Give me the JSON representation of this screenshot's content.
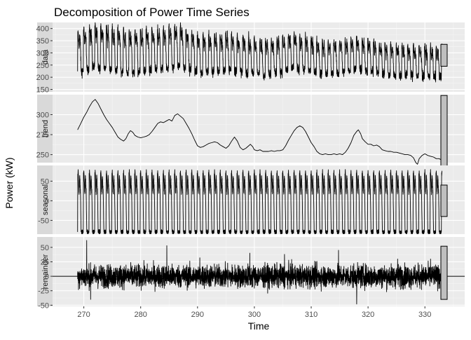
{
  "chart_data": {
    "type": "line",
    "title": "Decomposition of Power Time Series",
    "xlabel": "Time",
    "ylabel": "Power (kW)",
    "xlim": [
      264.5,
      337
    ],
    "x_ticks": [
      270,
      280,
      290,
      300,
      310,
      320,
      330
    ],
    "x_range": [
      268.9,
      333.0
    ],
    "grid": true,
    "panels": [
      {
        "name": "data",
        "ylim": [
          140,
          425
        ],
        "y_ticks": [
          150,
          200,
          250,
          300,
          350,
          400
        ],
        "level": [
          [
            268.9,
            300
          ],
          [
            270,
            315
          ],
          [
            272,
            330
          ],
          [
            275,
            320
          ],
          [
            278,
            305
          ],
          [
            282,
            312
          ],
          [
            285,
            325
          ],
          [
            287,
            330
          ],
          [
            290,
            300
          ],
          [
            293,
            300
          ],
          [
            296,
            305
          ],
          [
            299,
            290
          ],
          [
            302,
            285
          ],
          [
            305,
            295
          ],
          [
            307,
            310
          ],
          [
            309,
            300
          ],
          [
            312,
            280
          ],
          [
            315,
            285
          ],
          [
            318,
            300
          ],
          [
            320,
            290
          ],
          [
            323,
            275
          ],
          [
            326,
            270
          ],
          [
            328,
            268
          ],
          [
            330,
            265
          ],
          [
            333.0,
            260
          ]
        ],
        "amplitude": [
          [
            268.9,
            95
          ],
          [
            275,
            98
          ],
          [
            285,
            95
          ],
          [
            295,
            85
          ],
          [
            305,
            80
          ],
          [
            315,
            75
          ],
          [
            325,
            70
          ],
          [
            333.0,
            68
          ]
        ],
        "noise": 14,
        "scale_bar": [
          245,
          335
        ]
      },
      {
        "name": "trend",
        "ylim": [
          240,
          325
        ],
        "y_ticks": [
          250,
          275,
          300
        ],
        "points": [
          [
            268.9,
            281
          ],
          [
            269.4,
            288
          ],
          [
            270.0,
            297
          ],
          [
            270.5,
            303
          ],
          [
            271.0,
            310
          ],
          [
            271.5,
            316
          ],
          [
            272.0,
            319
          ],
          [
            272.5,
            314
          ],
          [
            273.0,
            307
          ],
          [
            273.5,
            300
          ],
          [
            274.0,
            294
          ],
          [
            274.5,
            289
          ],
          [
            275.0,
            284
          ],
          [
            275.5,
            278
          ],
          [
            276.0,
            272
          ],
          [
            276.5,
            269
          ],
          [
            277.0,
            267
          ],
          [
            277.4,
            270
          ],
          [
            277.8,
            276
          ],
          [
            278.2,
            280
          ],
          [
            278.6,
            278
          ],
          [
            279.0,
            274
          ],
          [
            279.5,
            272
          ],
          [
            280.0,
            271
          ],
          [
            280.5,
            272
          ],
          [
            281.0,
            273
          ],
          [
            281.5,
            275
          ],
          [
            282.0,
            279
          ],
          [
            282.5,
            284
          ],
          [
            283.0,
            289
          ],
          [
            283.5,
            291
          ],
          [
            284.0,
            290
          ],
          [
            284.5,
            292
          ],
          [
            285.0,
            294
          ],
          [
            285.5,
            292
          ],
          [
            286.0,
            299
          ],
          [
            286.5,
            301
          ],
          [
            287.0,
            298
          ],
          [
            287.5,
            295
          ],
          [
            288.0,
            289
          ],
          [
            288.5,
            283
          ],
          [
            289.0,
            276
          ],
          [
            289.5,
            268
          ],
          [
            290.0,
            261
          ],
          [
            290.5,
            259
          ],
          [
            291.0,
            260
          ],
          [
            291.5,
            262
          ],
          [
            292.0,
            264
          ],
          [
            292.5,
            265
          ],
          [
            293.0,
            266
          ],
          [
            293.5,
            265
          ],
          [
            294.0,
            262
          ],
          [
            294.5,
            260
          ],
          [
            295.0,
            258
          ],
          [
            295.5,
            261
          ],
          [
            296.0,
            267
          ],
          [
            296.5,
            272
          ],
          [
            297.0,
            267
          ],
          [
            297.5,
            259
          ],
          [
            298.0,
            256
          ],
          [
            298.5,
            258
          ],
          [
            299.0,
            261
          ],
          [
            299.3,
            263
          ],
          [
            299.7,
            260
          ],
          [
            300.0,
            256
          ],
          [
            300.5,
            255
          ],
          [
            301.0,
            256
          ],
          [
            301.5,
            254
          ],
          [
            302.0,
            254
          ],
          [
            302.5,
            254
          ],
          [
            303.0,
            255
          ],
          [
            303.5,
            254
          ],
          [
            304.0,
            255
          ],
          [
            304.5,
            255
          ],
          [
            305.0,
            256
          ],
          [
            305.5,
            261
          ],
          [
            306.0,
            268
          ],
          [
            306.5,
            274
          ],
          [
            307.0,
            280
          ],
          [
            307.5,
            284
          ],
          [
            308.0,
            286
          ],
          [
            308.5,
            284
          ],
          [
            309.0,
            279
          ],
          [
            309.5,
            272
          ],
          [
            310.0,
            265
          ],
          [
            310.5,
            260
          ],
          [
            311.0,
            254
          ],
          [
            311.5,
            251
          ],
          [
            312.0,
            250
          ],
          [
            312.5,
            251
          ],
          [
            313.0,
            250
          ],
          [
            313.5,
            250
          ],
          [
            314.0,
            251
          ],
          [
            314.5,
            250
          ],
          [
            315.0,
            251
          ],
          [
            315.5,
            250
          ],
          [
            316.0,
            253
          ],
          [
            316.5,
            258
          ],
          [
            317.0,
            265
          ],
          [
            317.5,
            274
          ],
          [
            318.0,
            279
          ],
          [
            318.3,
            281
          ],
          [
            318.7,
            276
          ],
          [
            319.0,
            270
          ],
          [
            319.5,
            266
          ],
          [
            320.0,
            263
          ],
          [
            320.5,
            263
          ],
          [
            321.0,
            261
          ],
          [
            321.5,
            262
          ],
          [
            322.0,
            260
          ],
          [
            322.5,
            256
          ],
          [
            323.0,
            255
          ],
          [
            323.5,
            254
          ],
          [
            324.0,
            254
          ],
          [
            324.5,
            253
          ],
          [
            325.0,
            253
          ],
          [
            325.5,
            252
          ],
          [
            326.0,
            251
          ],
          [
            326.5,
            250
          ],
          [
            327.0,
            250
          ],
          [
            327.5,
            249
          ],
          [
            328.0,
            246
          ],
          [
            328.4,
            240
          ],
          [
            328.7,
            238
          ],
          [
            329.0,
            245
          ],
          [
            329.5,
            249
          ],
          [
            330.0,
            251
          ],
          [
            330.5,
            249
          ],
          [
            331.0,
            248
          ],
          [
            331.5,
            247
          ],
          [
            332.0,
            245
          ],
          [
            332.5,
            245
          ],
          [
            333.0,
            243
          ]
        ],
        "scale_bar": [
          235,
          324
        ]
      },
      {
        "name": "seasonal",
        "ylim": [
          -85,
          90
        ],
        "y_ticks": [
          -50,
          0,
          50
        ],
        "period": 1.0,
        "amplitude_max": 78,
        "amplitude_min": -80,
        "scale_bar": [
          -40,
          40
        ]
      },
      {
        "name": "remainder",
        "ylim": [
          -52,
          68
        ],
        "y_ticks": [
          -50,
          -25,
          0,
          25,
          50
        ],
        "noise": 14,
        "spikes": [
          [
            270.5,
            62
          ],
          [
            271.2,
            -40
          ],
          [
            284.6,
            53
          ],
          [
            299.2,
            40
          ],
          [
            318.0,
            -48
          ],
          [
            314.8,
            45
          ],
          [
            305.3,
            38
          ],
          [
            290.4,
            32
          ],
          [
            325.2,
            30
          ],
          [
            331.0,
            30
          ]
        ],
        "scale_bar": [
          -40,
          52
        ]
      }
    ]
  }
}
